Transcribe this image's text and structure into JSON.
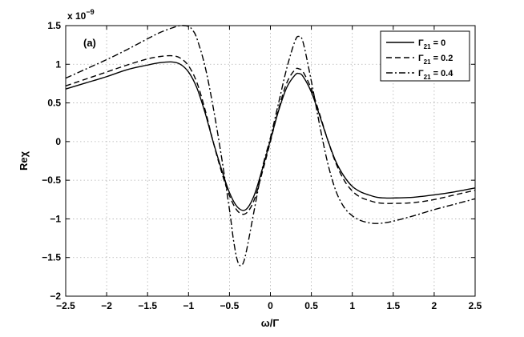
{
  "chart_data": {
    "type": "line",
    "panel_label": "(a)",
    "xlabel": "ω/Γ",
    "ylabel": "Reχ",
    "y_exponent_label": "x 10",
    "y_exponent_power": "−9",
    "xlim": [
      -2.5,
      2.5
    ],
    "ylim": [
      -2,
      1.5
    ],
    "x_ticks": [
      -2.5,
      -2,
      -1.5,
      -1,
      -0.5,
      0,
      0.5,
      1,
      1.5,
      2,
      2.5
    ],
    "x_tick_labels": [
      "−2.5",
      "−2",
      "−1.5",
      "−1",
      "−0.5",
      "0",
      "0.5",
      "1",
      "1.5",
      "2",
      "2.5"
    ],
    "y_ticks": [
      -2,
      -1.5,
      -1,
      -0.5,
      0,
      0.5,
      1,
      1.5
    ],
    "y_tick_labels": [
      "−2",
      "−1.5",
      "−1",
      "−0.5",
      "0",
      "0.5",
      "1",
      "1.5"
    ],
    "grid": true,
    "legend_position": "top-right",
    "series": [
      {
        "name": "Γ21 = 0",
        "name_base": "Γ",
        "name_sub": "21",
        "name_value": " = 0",
        "dash": "solid",
        "x": [
          -2.5,
          -2.25,
          -2.0,
          -1.75,
          -1.5,
          -1.35,
          -1.2,
          -1.1,
          -1.0,
          -0.9,
          -0.8,
          -0.7,
          -0.6,
          -0.5,
          -0.4,
          -0.3,
          -0.2,
          -0.1,
          0.0,
          0.1,
          0.2,
          0.3,
          0.35,
          0.4,
          0.5,
          0.6,
          0.7,
          0.8,
          0.9,
          1.0,
          1.1,
          1.2,
          1.3,
          1.4,
          1.5,
          1.75,
          2.0,
          2.25,
          2.5
        ],
        "y": [
          0.68,
          0.76,
          0.84,
          0.93,
          0.99,
          1.02,
          1.03,
          1.0,
          0.9,
          0.7,
          0.38,
          0.0,
          -0.35,
          -0.66,
          -0.85,
          -0.88,
          -0.7,
          -0.36,
          0.02,
          0.4,
          0.7,
          0.86,
          0.88,
          0.84,
          0.64,
          0.34,
          0.02,
          -0.26,
          -0.45,
          -0.58,
          -0.65,
          -0.69,
          -0.72,
          -0.73,
          -0.73,
          -0.72,
          -0.69,
          -0.65,
          -0.6
        ]
      },
      {
        "name": "Γ21 = 0.2",
        "name_base": "Γ",
        "name_sub": "21",
        "name_value": " = 0.2",
        "dash": "dashed",
        "x": [
          -2.5,
          -2.25,
          -2.0,
          -1.75,
          -1.5,
          -1.35,
          -1.2,
          -1.1,
          -1.0,
          -0.9,
          -0.8,
          -0.7,
          -0.6,
          -0.5,
          -0.4,
          -0.3,
          -0.2,
          -0.1,
          0.0,
          0.1,
          0.2,
          0.3,
          0.35,
          0.4,
          0.5,
          0.6,
          0.7,
          0.8,
          0.9,
          1.0,
          1.1,
          1.2,
          1.3,
          1.4,
          1.5,
          1.75,
          2.0,
          2.25,
          2.5
        ],
        "y": [
          0.72,
          0.81,
          0.9,
          0.99,
          1.07,
          1.1,
          1.11,
          1.08,
          0.98,
          0.77,
          0.42,
          0.0,
          -0.38,
          -0.7,
          -0.9,
          -0.93,
          -0.76,
          -0.4,
          0.0,
          0.42,
          0.76,
          0.93,
          0.94,
          0.9,
          0.68,
          0.36,
          0.02,
          -0.28,
          -0.5,
          -0.64,
          -0.72,
          -0.76,
          -0.79,
          -0.8,
          -0.8,
          -0.79,
          -0.75,
          -0.69,
          -0.63
        ]
      },
      {
        "name": "Γ21 = 0.4",
        "name_base": "Γ",
        "name_sub": "21",
        "name_value": " = 0.4",
        "dash": "dash-dot",
        "x": [
          -2.5,
          -2.25,
          -2.0,
          -1.75,
          -1.5,
          -1.35,
          -1.2,
          -1.1,
          -1.0,
          -0.95,
          -0.9,
          -0.8,
          -0.7,
          -0.6,
          -0.5,
          -0.45,
          -0.4,
          -0.35,
          -0.3,
          -0.2,
          -0.1,
          0.0,
          0.1,
          0.2,
          0.3,
          0.35,
          0.4,
          0.5,
          0.6,
          0.7,
          0.8,
          0.9,
          1.0,
          1.1,
          1.2,
          1.3,
          1.4,
          1.5,
          1.75,
          2.0,
          2.25,
          2.5
        ],
        "y": [
          0.82,
          0.94,
          1.06,
          1.19,
          1.33,
          1.41,
          1.47,
          1.5,
          1.49,
          1.44,
          1.34,
          0.98,
          0.45,
          -0.18,
          -0.88,
          -1.28,
          -1.55,
          -1.6,
          -1.45,
          -0.9,
          -0.35,
          0.05,
          0.5,
          0.95,
          1.3,
          1.36,
          1.28,
          0.78,
          0.22,
          -0.28,
          -0.64,
          -0.85,
          -0.96,
          -1.02,
          -1.05,
          -1.06,
          -1.05,
          -1.03,
          -0.96,
          -0.88,
          -0.81,
          -0.74
        ]
      }
    ]
  }
}
